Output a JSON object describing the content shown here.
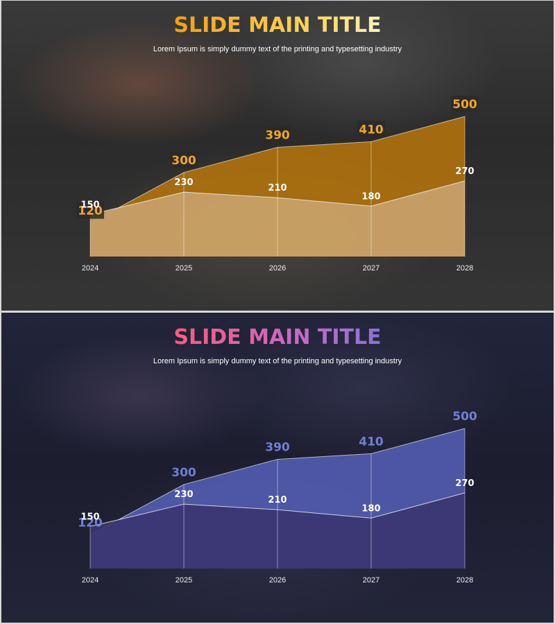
{
  "slides": [
    {
      "title": "SLIDE MAIN TITLE",
      "subtitle": "Lorem Ipsum is simply dummy text of the printing and typesetting industry"
    },
    {
      "title": "SLIDE MAIN TITLE",
      "subtitle": "Lorem Ipsum is simply dummy text of the printing and typesetting industry"
    }
  ],
  "chart_data": [
    {
      "type": "area",
      "categories": [
        "2024",
        "2025",
        "2026",
        "2027",
        "2028"
      ],
      "series": [
        {
          "values": [
            120,
            300,
            390,
            410,
            500
          ],
          "color": "#b8760a"
        },
        {
          "values": [
            150,
            230,
            210,
            180,
            270
          ],
          "color": "#c9a36e"
        }
      ],
      "ylim": [
        0,
        500
      ],
      "grid": false,
      "accent_label_color": "#f5a623",
      "accent_label_box": true
    },
    {
      "type": "area",
      "categories": [
        "2024",
        "2025",
        "2026",
        "2027",
        "2028"
      ],
      "series": [
        {
          "values": [
            120,
            300,
            390,
            410,
            500
          ],
          "color": "#5560b8"
        },
        {
          "values": [
            150,
            230,
            210,
            180,
            270
          ],
          "color": "#3a3570"
        }
      ],
      "ylim": [
        0,
        500
      ],
      "grid": false,
      "accent_label_color": "#6f7fd8",
      "accent_label_box": false
    }
  ]
}
